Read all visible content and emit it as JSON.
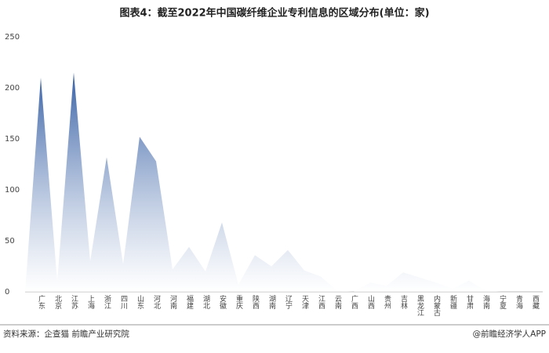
{
  "chart_data": {
    "type": "area",
    "title": "图表4：截至2022年中国碳纤维企业专利信息的区域分布(单位：家)",
    "categories": [
      "广东",
      "北京",
      "江苏",
      "上海",
      "浙江",
      "四川",
      "山东",
      "河北",
      "河南",
      "福建",
      "湖北",
      "安徽",
      "重庆",
      "陕西",
      "湖南",
      "辽宁",
      "天津",
      "江西",
      "云南",
      "广西",
      "山西",
      "贵州",
      "吉林",
      "黑龙江",
      "内蒙古",
      "新疆",
      "甘肃",
      "海南",
      "宁夏",
      "青海",
      "西藏"
    ],
    "values": [
      210,
      10,
      215,
      30,
      132,
      27,
      152,
      128,
      22,
      44,
      20,
      68,
      7,
      36,
      25,
      41,
      21,
      15,
      1,
      0,
      9,
      6,
      19,
      14,
      9,
      3,
      11,
      1,
      0,
      0,
      0
    ],
    "color": "#0b3d91",
    "ylim": [
      0,
      250
    ],
    "yticks": [
      0,
      50,
      100,
      150,
      200,
      250
    ],
    "source": "资料来源：企查猫 前瞻产业研究院",
    "brand": "@前瞻经济学人APP"
  }
}
